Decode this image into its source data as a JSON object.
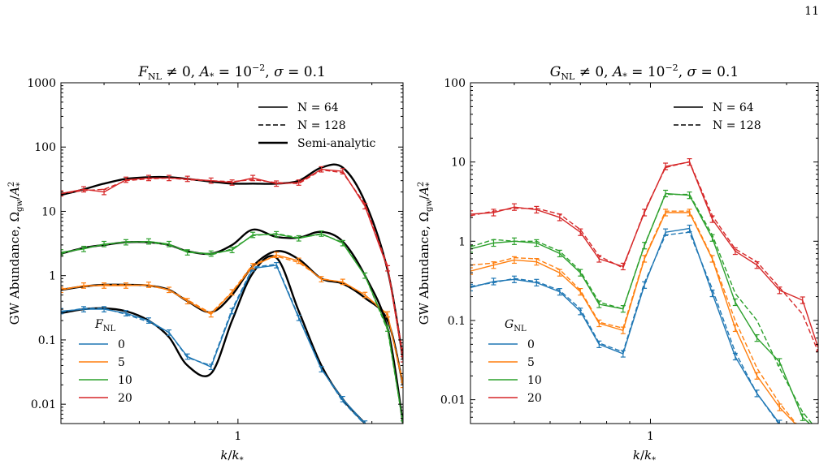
{
  "page_number": "11",
  "chart_data": [
    {
      "type": "line",
      "title": "F_NL ≠ 0, A_* = 10^−2, σ = 0.1",
      "title_parts": {
        "var": "F",
        "sub": "NL",
        "rest1": " ≠ 0, ",
        "a": "A",
        "a_sub": "*",
        "eq": " = 10",
        "exp": "−2",
        "rest2": ", ",
        "sigma": "σ",
        "end": " = 0.1"
      },
      "xlabel": "k/k_*",
      "ylabel": "GW Abundance, Ω_gw/A_*^2",
      "xscale": "log",
      "yscale": "log",
      "xlim": [
        0.4,
        2.35
      ],
      "ylim": [
        0.005,
        1000
      ],
      "xticks": [
        1
      ],
      "xticklabels": [
        "1"
      ],
      "yticks": [
        0.01,
        0.1,
        1,
        10,
        100,
        1000
      ],
      "yticklabels": [
        "0.01",
        "0.1",
        "1",
        "10",
        "100",
        "1000"
      ],
      "legend_styles": {
        "placement": "top-right",
        "entries": [
          "N = 64",
          "N = 128",
          "Semi-analytic"
        ]
      },
      "legend_param": {
        "placement": "lower-left",
        "title": "F_NL",
        "entries": [
          "0",
          "5",
          "10",
          "20"
        ]
      },
      "colors": {
        "0": "#1f77b4",
        "5": "#ff7f0e",
        "10": "#2ca02c",
        "20": "#d62728"
      },
      "x": [
        0.4,
        0.45,
        0.5,
        0.56,
        0.63,
        0.7,
        0.77,
        0.87,
        0.97,
        1.08,
        1.22,
        1.37,
        1.54,
        1.72,
        1.93,
        2.17,
        2.35
      ],
      "series": [
        {
          "name": "0",
          "n64": [
            0.28,
            0.3,
            0.3,
            0.26,
            0.2,
            0.13,
            0.055,
            0.038,
            0.28,
            1.3,
            1.45,
            0.22,
            0.035,
            0.012,
            0.005,
            0.002,
            0.001
          ],
          "n128": [
            0.27,
            0.31,
            0.31,
            0.25,
            0.19,
            0.13,
            0.053,
            0.04,
            0.3,
            1.35,
            1.5,
            0.23,
            0.036,
            0.011,
            0.0048,
            0.002,
            0.001
          ],
          "semi": [
            0.26,
            0.3,
            0.31,
            0.28,
            0.2,
            0.11,
            0.04,
            0.03,
            0.2,
            1.1,
            1.9,
            0.28,
            0.04,
            0.012,
            0.005,
            0.002,
            0.001
          ]
        },
        {
          "name": "5",
          "n64": [
            0.6,
            0.7,
            0.7,
            0.7,
            0.72,
            0.6,
            0.4,
            0.25,
            0.55,
            1.4,
            2.1,
            1.7,
            0.88,
            0.8,
            0.5,
            0.25,
            0.02
          ],
          "n128": [
            0.62,
            0.68,
            0.72,
            0.72,
            0.7,
            0.6,
            0.42,
            0.26,
            0.56,
            1.5,
            2.0,
            1.6,
            0.9,
            0.78,
            0.5,
            0.24,
            0.022
          ],
          "semi": [
            0.6,
            0.68,
            0.72,
            0.72,
            0.7,
            0.6,
            0.4,
            0.27,
            0.5,
            1.4,
            2.4,
            1.8,
            0.9,
            0.75,
            0.45,
            0.2,
            0.02
          ]
        },
        {
          "name": "10",
          "n64": [
            2.3,
            2.6,
            3.1,
            3.3,
            3.4,
            3.1,
            2.3,
            2.2,
            2.5,
            4.3,
            4.4,
            3.8,
            4.5,
            3.2,
            1.0,
            0.15,
            0.005
          ],
          "n128": [
            2.2,
            2.7,
            3.0,
            3.4,
            3.3,
            3.0,
            2.4,
            2.1,
            2.6,
            4.2,
            4.5,
            3.9,
            4.4,
            3.3,
            1.0,
            0.14,
            0.005
          ],
          "semi": [
            2.2,
            2.7,
            3.0,
            3.3,
            3.3,
            3.0,
            2.4,
            2.2,
            3.0,
            5.2,
            4.0,
            3.9,
            4.8,
            3.4,
            1.0,
            0.15,
            0.005
          ]
        },
        {
          "name": "20",
          "n64": [
            19,
            22,
            20,
            31,
            33,
            33,
            32,
            30,
            28,
            33,
            27,
            28,
            45,
            42,
            12,
            1.3,
            0.05
          ],
          "n128": [
            19,
            21,
            22,
            30,
            32,
            33,
            31,
            30,
            29,
            31,
            28,
            27,
            44,
            40,
            13,
            1.4,
            0.06
          ],
          "semi": [
            18,
            22,
            27,
            32,
            34,
            34,
            32,
            29,
            27,
            27,
            27,
            30,
            48,
            48,
            14,
            1.2,
            0.05
          ]
        }
      ]
    },
    {
      "type": "line",
      "title": "G_NL ≠ 0, A_* = 10^−2, σ = 0.1",
      "title_parts": {
        "var": "G",
        "sub": "NL",
        "rest1": " ≠ 0, ",
        "a": "A",
        "a_sub": "*",
        "eq": " = 10",
        "exp": "−2",
        "rest2": ", ",
        "sigma": "σ",
        "end": " = 0.1"
      },
      "xlabel": "k/k_*",
      "ylabel": "GW Abundance, Ω_gw/A_*^2",
      "xscale": "log",
      "yscale": "log",
      "xlim": [
        0.4,
        2.35
      ],
      "ylim": [
        0.005,
        100
      ],
      "xticks": [
        1
      ],
      "xticklabels": [
        "1"
      ],
      "yticks": [
        0.01,
        0.1,
        1,
        10,
        100
      ],
      "yticklabels": [
        "0.01",
        "0.1",
        "1",
        "10",
        "100"
      ],
      "legend_styles": {
        "placement": "top-right",
        "entries": [
          "N = 64",
          "N = 128"
        ]
      },
      "legend_param": {
        "placement": "lower-left",
        "title": "G_NL",
        "entries": [
          "0",
          "5",
          "10",
          "20"
        ]
      },
      "colors": {
        "0": "#1f77b4",
        "5": "#ff7f0e",
        "10": "#2ca02c",
        "20": "#d62728"
      },
      "x": [
        0.4,
        0.45,
        0.5,
        0.56,
        0.63,
        0.7,
        0.77,
        0.87,
        0.97,
        1.08,
        1.22,
        1.37,
        1.54,
        1.72,
        1.93,
        2.17,
        2.35
      ],
      "series": [
        {
          "name": "0",
          "n64": [
            0.26,
            0.31,
            0.33,
            0.3,
            0.23,
            0.13,
            0.05,
            0.038,
            0.28,
            1.3,
            1.45,
            0.22,
            0.035,
            0.012,
            0.005,
            0.003,
            0.002
          ],
          "n128": [
            0.27,
            0.3,
            0.34,
            0.31,
            0.24,
            0.14,
            0.052,
            0.04,
            0.3,
            1.2,
            1.3,
            0.25,
            0.04,
            0.012,
            0.0048,
            0.003,
            0.002
          ]
        },
        {
          "name": "5",
          "n64": [
            0.42,
            0.5,
            0.58,
            0.55,
            0.4,
            0.23,
            0.092,
            0.075,
            0.6,
            2.3,
            2.3,
            0.6,
            0.08,
            0.02,
            0.008,
            0.004,
            0.003
          ],
          "n128": [
            0.5,
            0.53,
            0.62,
            0.6,
            0.44,
            0.24,
            0.095,
            0.08,
            0.62,
            2.4,
            2.4,
            0.62,
            0.1,
            0.025,
            0.009,
            0.004,
            0.003
          ]
        },
        {
          "name": "10",
          "n64": [
            0.8,
            0.95,
            1.0,
            0.95,
            0.7,
            0.4,
            0.16,
            0.14,
            0.88,
            4.0,
            3.8,
            1.1,
            0.17,
            0.06,
            0.03,
            0.006,
            0.004
          ],
          "n128": [
            0.85,
            1.05,
            1.0,
            1.0,
            0.75,
            0.42,
            0.17,
            0.14,
            0.9,
            3.9,
            3.9,
            1.2,
            0.22,
            0.1,
            0.025,
            0.007,
            0.004
          ]
        },
        {
          "name": "20",
          "n64": [
            2.2,
            2.3,
            2.7,
            2.5,
            2.0,
            1.3,
            0.6,
            0.48,
            2.3,
            8.8,
            10,
            1.9,
            0.75,
            0.5,
            0.24,
            0.18,
            0.045
          ],
          "n128": [
            2.1,
            2.4,
            2.6,
            2.6,
            2.2,
            1.4,
            0.65,
            0.46,
            2.4,
            8.5,
            10.1,
            2.1,
            0.8,
            0.55,
            0.26,
            0.12,
            0.04
          ]
        }
      ]
    }
  ]
}
